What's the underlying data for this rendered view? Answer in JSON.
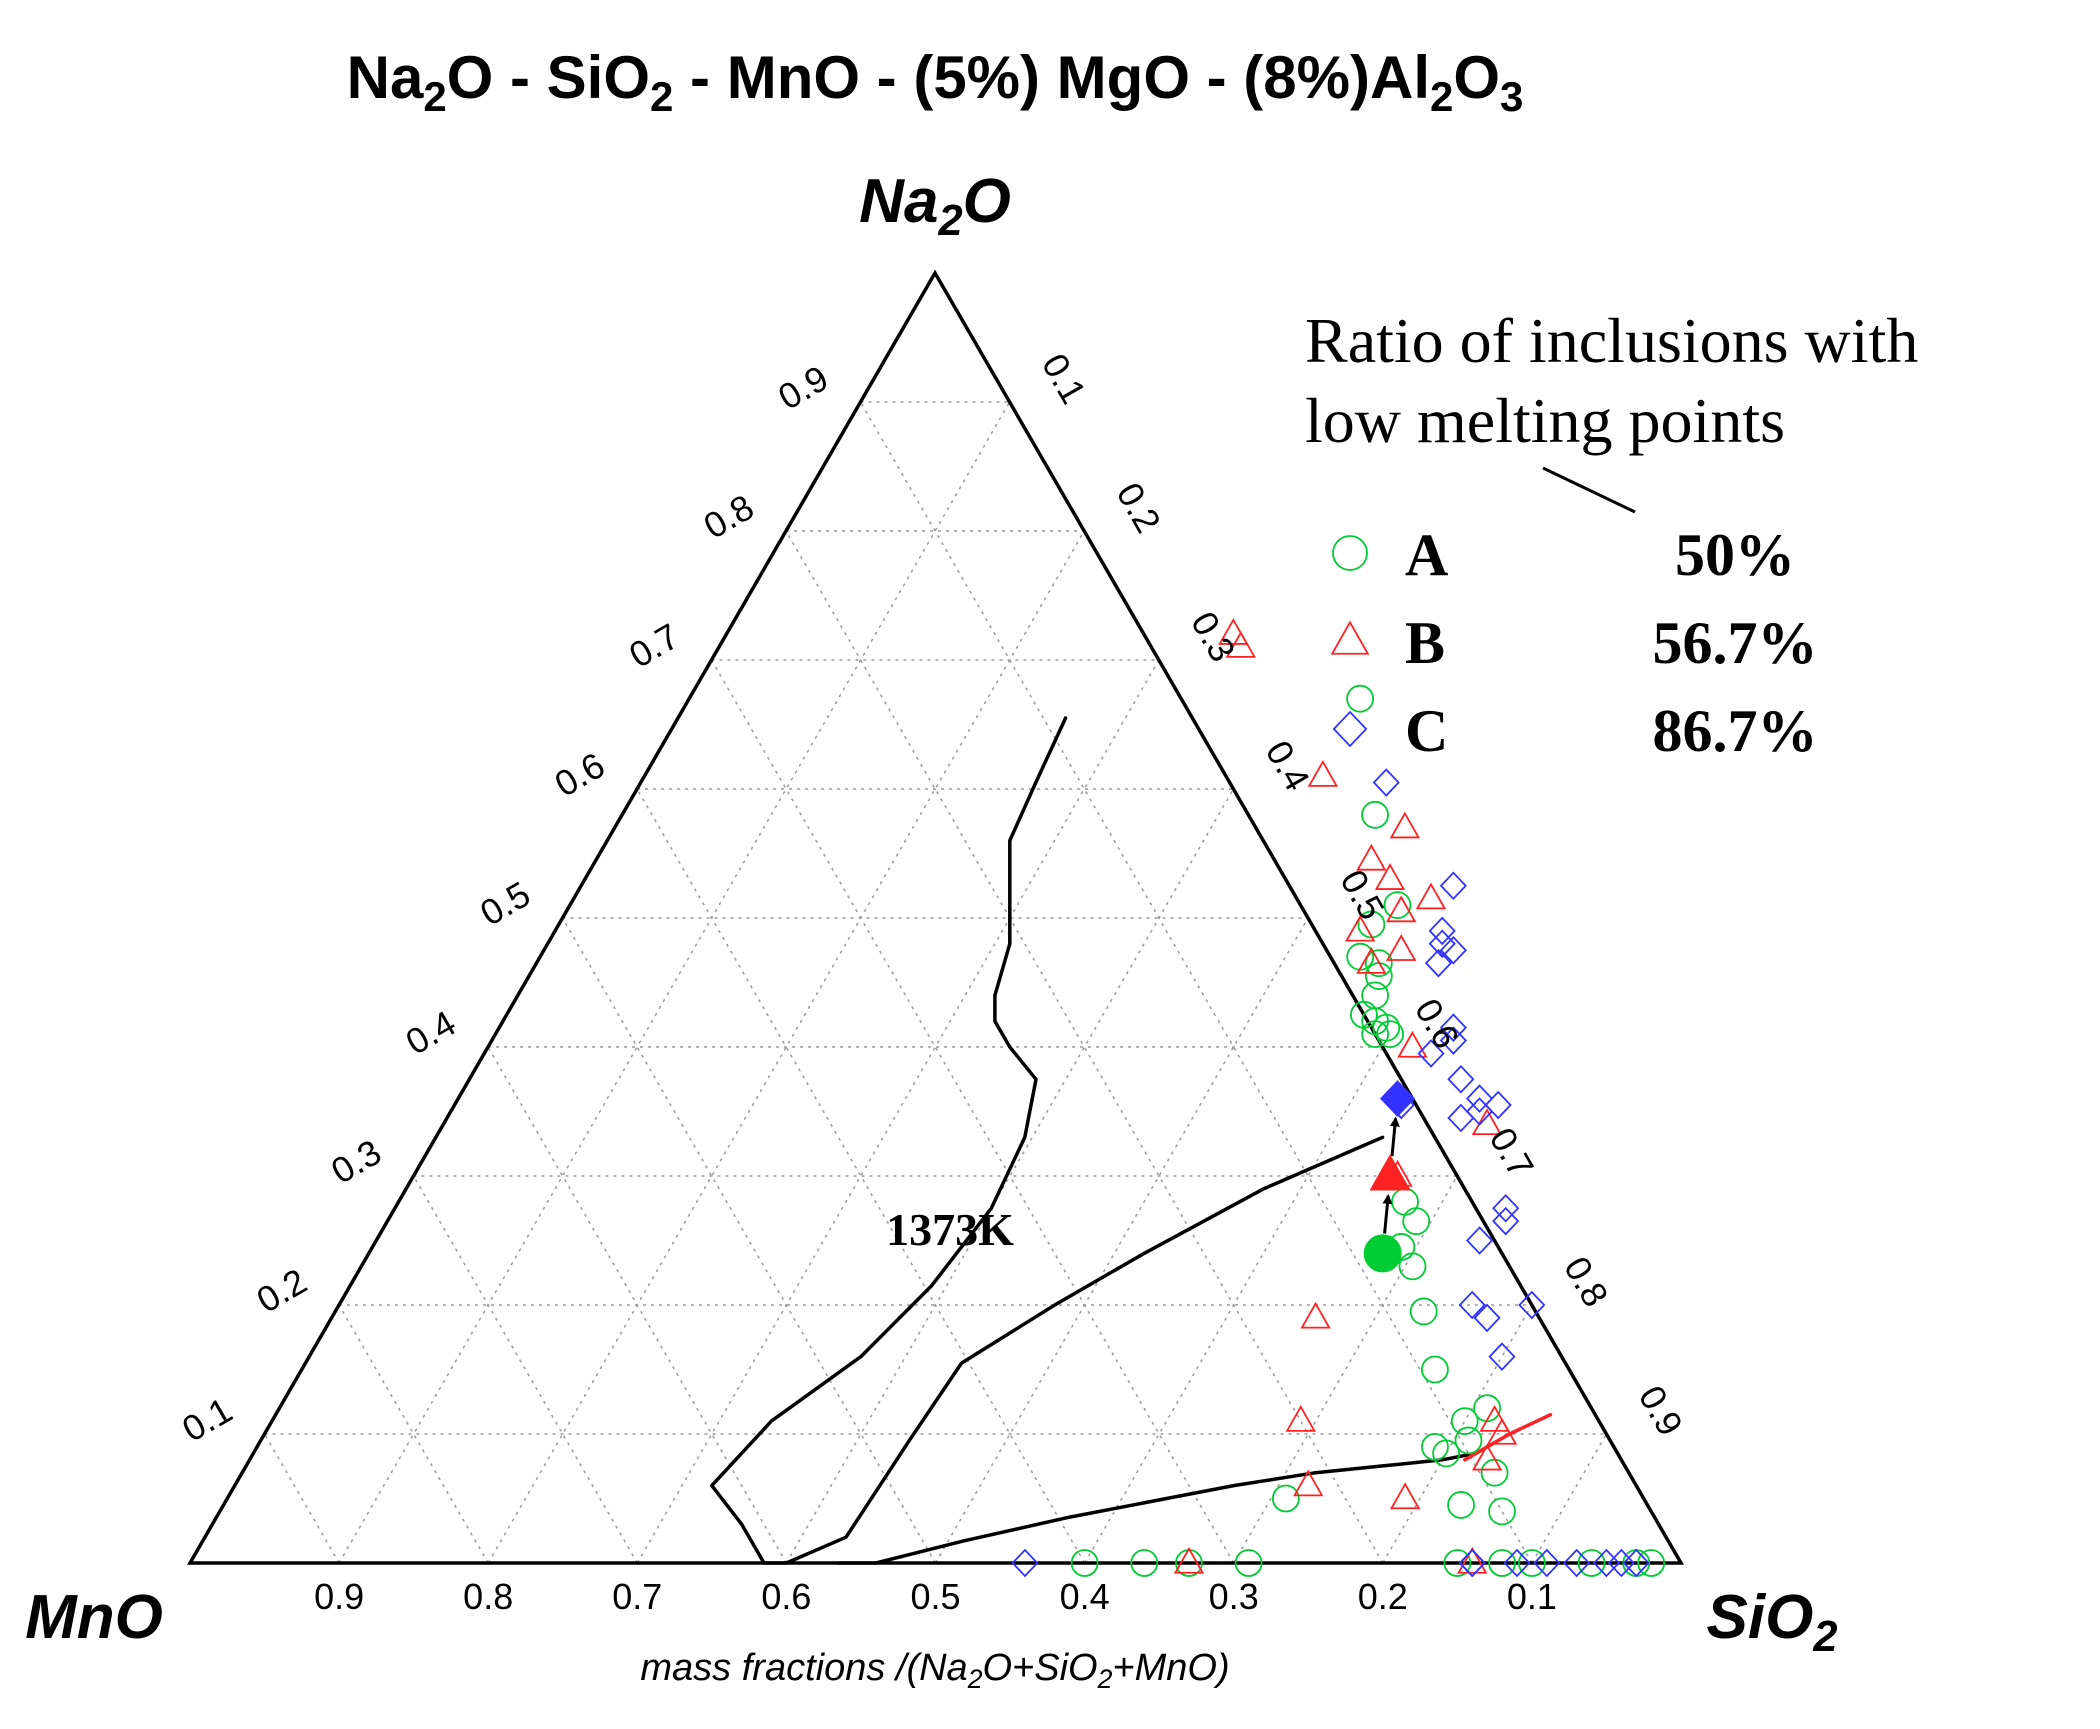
{
  "chart_data": {
    "type": "scatter",
    "subtype": "ternary",
    "title": {
      "segments": [
        {
          "t": "Na"
        },
        {
          "t": "2",
          "sub": true
        },
        {
          "t": "O - SiO"
        },
        {
          "t": "2",
          "sub": true
        },
        {
          "t": " - MnO - (5%) MgO - (8%)Al"
        },
        {
          "t": "2",
          "sub": true
        },
        {
          "t": "O"
        },
        {
          "t": "3",
          "sub": true
        }
      ]
    },
    "vertex_labels": {
      "top": [
        {
          "t": "Na"
        },
        {
          "t": "2",
          "sub": true
        },
        {
          "t": "O"
        }
      ],
      "left": [
        {
          "t": "MnO"
        }
      ],
      "right": [
        {
          "t": "SiO"
        },
        {
          "t": "2",
          "sub": true
        }
      ]
    },
    "axis_caption": [
      {
        "t": "mass fractions /(Na"
      },
      {
        "t": "2",
        "sub": true
      },
      {
        "t": "O+SiO"
      },
      {
        "t": "2",
        "sub": true
      },
      {
        "t": "+MnO)"
      }
    ],
    "ticks": {
      "na2o_left": [
        "0.1",
        "0.2",
        "0.3",
        "0.4",
        "0.5",
        "0.6",
        "0.7",
        "0.8",
        "0.9"
      ],
      "sio2_right": [
        "0.1",
        "0.2",
        "0.3",
        "0.4",
        "0.5",
        "0.6",
        "0.7",
        "0.8",
        "0.9"
      ],
      "mno_bottom": [
        "0.9",
        "0.8",
        "0.7",
        "0.6",
        "0.5",
        "0.4",
        "0.3",
        "0.2",
        "0.1"
      ]
    },
    "grid": true,
    "isotherm_label": "1373K",
    "legend": {
      "title_lines": [
        "Ratio of inclusions with",
        "low melting points"
      ],
      "position": "top-right",
      "entries": [
        {
          "name": "A",
          "ratio": "50%",
          "marker": "circle",
          "color": "#00cc33"
        },
        {
          "name": "B",
          "ratio": "56.7%",
          "marker": "triangle",
          "color": "#ff2222"
        },
        {
          "name": "C",
          "ratio": "86.7%",
          "marker": "diamond",
          "color": "#3333ff"
        }
      ]
    },
    "curves": [
      {
        "color": "#000000",
        "points": [
          [
            0.635,
            0.33
          ],
          [
            0.575,
            0.29
          ],
          [
            0.52,
            0.24
          ],
          [
            0.48,
            0.2
          ],
          [
            0.44,
            0.155
          ],
          [
            0.435,
            0.095
          ],
          [
            0.43,
            0.02
          ],
          [
            0.4,
            0.0
          ],
          [
            0.385,
            0.0
          ],
          [
            0.355,
            0.03
          ],
          [
            0.32,
            0.06
          ],
          [
            0.335,
            0.11
          ],
          [
            0.37,
            0.16
          ],
          [
            0.39,
            0.215
          ],
          [
            0.4,
            0.275
          ],
          [
            0.395,
            0.33
          ],
          [
            0.38,
            0.375
          ],
          [
            0.35,
            0.4
          ],
          [
            0.33,
            0.42
          ],
          [
            0.32,
            0.44
          ],
          [
            0.31,
            0.48
          ],
          [
            0.29,
            0.52
          ],
          [
            0.27,
            0.56
          ],
          [
            0.265,
            0.605
          ],
          [
            0.26,
            0.655
          ]
        ]
      },
      {
        "color": "#000000",
        "points": [
          [
            0.435,
            0.0
          ],
          [
            0.46,
            0.0
          ],
          [
            0.51,
            0.017
          ],
          [
            0.57,
            0.035
          ],
          [
            0.63,
            0.05
          ],
          [
            0.67,
            0.06
          ],
          [
            0.72,
            0.07
          ],
          [
            0.76,
            0.075
          ],
          [
            0.8,
            0.08
          ],
          [
            0.82,
            0.085
          ]
        ]
      },
      {
        "color": "#ff2222",
        "points": [
          [
            0.815,
            0.08
          ],
          [
            0.835,
            0.1
          ],
          [
            0.855,
            0.115
          ]
        ]
      }
    ],
    "series": [
      {
        "name": "A",
        "marker": "circle",
        "color": "#00cc33",
        "points": [
          [
            0.45,
            0.67
          ],
          [
            0.505,
            0.58
          ],
          [
            0.555,
            0.51
          ],
          [
            0.545,
            0.495
          ],
          [
            0.55,
            0.47
          ],
          [
            0.565,
            0.465
          ],
          [
            0.57,
            0.455
          ],
          [
            0.575,
            0.44
          ],
          [
            0.575,
            0.425
          ],
          [
            0.585,
            0.42
          ],
          [
            0.595,
            0.415
          ],
          [
            0.59,
            0.41
          ],
          [
            0.6,
            0.41
          ],
          [
            0.675,
            0.28
          ],
          [
            0.69,
            0.265
          ],
          [
            0.69,
            0.245
          ],
          [
            0.705,
            0.23
          ],
          [
            0.73,
            0.195
          ],
          [
            0.76,
            0.15
          ],
          [
            0.81,
            0.12
          ],
          [
            0.8,
            0.11
          ],
          [
            0.79,
            0.09
          ],
          [
            0.8,
            0.085
          ],
          [
            0.84,
            0.07
          ],
          [
            0.86,
            0.04
          ],
          [
            0.83,
            0.045
          ],
          [
            0.71,
            0.05
          ],
          [
            0.81,
            0.095
          ],
          [
            0.97,
            0.0
          ],
          [
            0.85,
            0.0
          ],
          [
            0.88,
            0.0
          ],
          [
            0.9,
            0.0
          ],
          [
            0.94,
            0.0
          ],
          [
            0.98,
            0.0
          ],
          [
            0.6,
            0.0
          ],
          [
            0.64,
            0.0
          ],
          [
            0.67,
            0.0
          ],
          [
            0.71,
            0.0
          ]
        ],
        "highlight": {
          "point": [
            0.68,
            0.24
          ]
        }
      },
      {
        "name": "B",
        "marker": "triangle",
        "color": "#ff2222",
        "points": [
          [
            0.34,
            0.72
          ],
          [
            0.35,
            0.71
          ],
          [
            0.455,
            0.61
          ],
          [
            0.53,
            0.57
          ],
          [
            0.52,
            0.545
          ],
          [
            0.54,
            0.53
          ],
          [
            0.575,
            0.515
          ],
          [
            0.56,
            0.505
          ],
          [
            0.575,
            0.475
          ],
          [
            0.54,
            0.49
          ],
          [
            0.56,
            0.465
          ],
          [
            0.62,
            0.4
          ],
          [
            0.7,
            0.34
          ],
          [
            0.66,
            0.3
          ],
          [
            0.66,
            0.19
          ],
          [
            0.82,
            0.11
          ],
          [
            0.83,
            0.1
          ],
          [
            0.69,
            0.11
          ],
          [
            0.79,
            0.05
          ],
          [
            0.83,
            0.08
          ],
          [
            0.72,
            0.06
          ],
          [
            0.86,
            0.0
          ],
          [
            0.67,
            0.0
          ]
        ],
        "highlight": {
          "point": [
            0.655,
            0.3
          ]
        }
      },
      {
        "name": "C",
        "marker": "diamond",
        "color": "#3333ff",
        "points": [
          [
            0.5,
            0.605
          ],
          [
            0.585,
            0.525
          ],
          [
            0.595,
            0.49
          ],
          [
            0.6,
            0.48
          ],
          [
            0.61,
            0.475
          ],
          [
            0.605,
            0.465
          ],
          [
            0.64,
            0.415
          ],
          [
            0.645,
            0.405
          ],
          [
            0.635,
            0.395
          ],
          [
            0.665,
            0.375
          ],
          [
            0.685,
            0.36
          ],
          [
            0.69,
            0.35
          ],
          [
            0.7,
            0.355
          ],
          [
            0.68,
            0.345
          ],
          [
            0.635,
            0.355
          ],
          [
            0.745,
            0.275
          ],
          [
            0.75,
            0.265
          ],
          [
            0.74,
            0.25
          ],
          [
            0.76,
            0.2
          ],
          [
            0.8,
            0.2
          ],
          [
            0.775,
            0.19
          ],
          [
            0.8,
            0.16
          ],
          [
            0.56,
            0.0
          ],
          [
            0.86,
            0.0
          ],
          [
            0.89,
            0.0
          ],
          [
            0.91,
            0.0
          ],
          [
            0.93,
            0.0
          ],
          [
            0.95,
            0.0
          ],
          [
            0.96,
            0.0
          ],
          [
            0.97,
            0.0
          ],
          [
            0.86,
            0.0
          ]
        ],
        "highlight": {
          "point": [
            0.63,
            0.36
          ]
        }
      }
    ]
  }
}
